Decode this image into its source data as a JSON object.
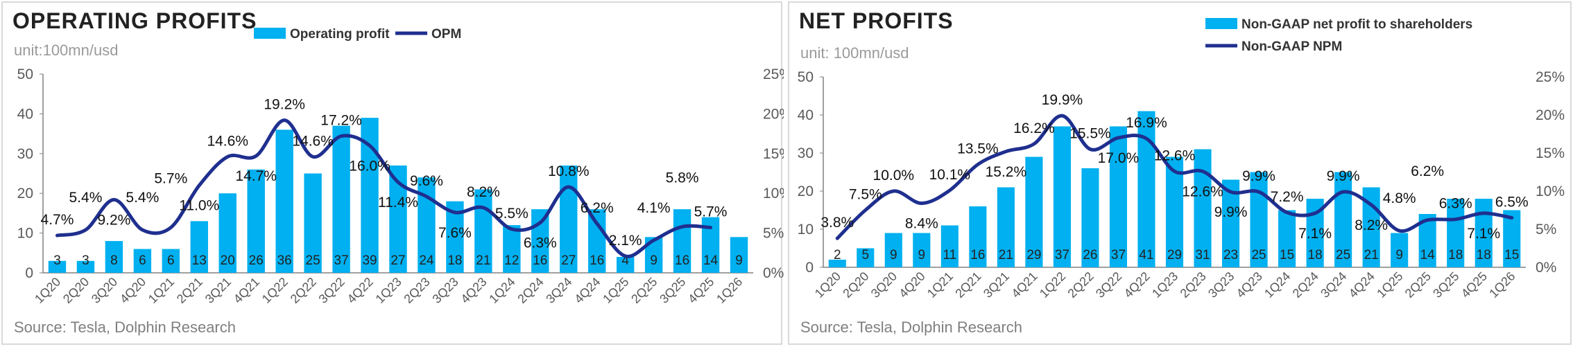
{
  "colors": {
    "bar": "#00b0f0",
    "line": "#1f2f8f",
    "axis": "#808080",
    "text": "#404040"
  },
  "chart_data": [
    {
      "type": "bar+line",
      "title": "OPERATING PROFITS",
      "unit": "unit:100mn/usd",
      "source": "Source: Tesla, Dolphin Research",
      "categories": [
        "1Q20",
        "2Q20",
        "3Q20",
        "4Q20",
        "1Q21",
        "2Q21",
        "3Q21",
        "4Q21",
        "1Q22",
        "2Q22",
        "3Q22",
        "4Q22",
        "1Q23",
        "2Q23",
        "3Q23",
        "4Q23",
        "1Q24",
        "2Q24",
        "3Q24",
        "4Q24",
        "1Q25",
        "2Q25",
        "3Q25",
        "4Q25",
        "1Q26"
      ],
      "left_axis": {
        "ylim": [
          0,
          50
        ],
        "ticks": [
          "0",
          "10",
          "20",
          "30",
          "40",
          "50"
        ]
      },
      "right_axis": {
        "ylim": [
          0,
          25
        ],
        "ticks": [
          "0%",
          "5%",
          "10%",
          "15%",
          "20%",
          "25%"
        ]
      },
      "legend_placement": "top-center",
      "series": [
        {
          "name": "Operating profit",
          "kind": "bar",
          "axis": "left",
          "values": [
            3,
            3,
            8,
            6,
            6,
            13,
            20,
            26,
            36,
            25,
            37,
            39,
            27,
            24,
            18,
            21,
            12,
            16,
            27,
            16,
            4,
            9,
            16,
            14,
            9
          ]
        },
        {
          "name": "OPM",
          "kind": "line",
          "axis": "right",
          "values": [
            4.7,
            5.4,
            9.2,
            5.4,
            5.7,
            11.0,
            14.6,
            14.7,
            19.2,
            14.6,
            17.2,
            16.0,
            11.4,
            9.6,
            7.6,
            8.2,
            5.5,
            6.3,
            10.8,
            6.2,
            2.1,
            4.1,
            5.8,
            5.7,
            null
          ]
        }
      ]
    },
    {
      "type": "bar+line",
      "title": "NET PROFITS",
      "unit": "unit: 100mn/usd",
      "source": "Source: Tesla, Dolphin Research",
      "categories": [
        "1Q20",
        "2Q20",
        "3Q20",
        "4Q20",
        "1Q21",
        "2Q21",
        "3Q21",
        "4Q21",
        "1Q22",
        "2Q22",
        "3Q22",
        "4Q22",
        "1Q23",
        "2Q23",
        "3Q23",
        "4Q23",
        "1Q24",
        "2Q24",
        "3Q24",
        "4Q24",
        "1Q25",
        "2Q25",
        "3Q25",
        "4Q25",
        "1Q26"
      ],
      "left_axis": {
        "ylim": [
          0,
          50
        ],
        "ticks": [
          "0",
          "10",
          "20",
          "30",
          "40",
          "50"
        ]
      },
      "right_axis": {
        "ylim": [
          0,
          25
        ],
        "ticks": [
          "0%",
          "5%",
          "10%",
          "15%",
          "20%",
          "25%"
        ]
      },
      "legend_placement": "top-right",
      "series": [
        {
          "name": "Non-GAAP net profit to shareholders",
          "kind": "bar",
          "axis": "left",
          "values": [
            2,
            5,
            9,
            9,
            11,
            16,
            21,
            29,
            37,
            26,
            37,
            41,
            29,
            31,
            23,
            25,
            15,
            18,
            25,
            21,
            9,
            14,
            18,
            18,
            15
          ]
        },
        {
          "name": "Non-GAAP NPM",
          "kind": "line",
          "axis": "right",
          "values": [
            3.8,
            7.5,
            10.0,
            8.4,
            10.1,
            13.5,
            15.2,
            16.2,
            19.9,
            15.5,
            17.0,
            16.9,
            12.6,
            12.6,
            9.9,
            9.9,
            7.2,
            7.1,
            9.9,
            8.2,
            4.8,
            6.2,
            6.3,
            7.1,
            6.5
          ]
        }
      ]
    }
  ]
}
